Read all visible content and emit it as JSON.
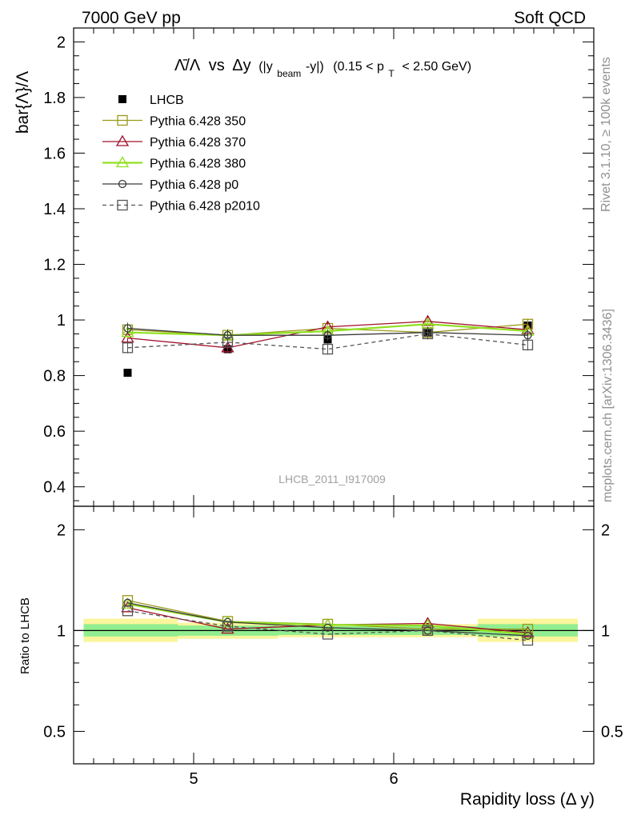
{
  "header": {
    "left": "7000 GeV pp",
    "right": "Soft QCD"
  },
  "side_text": {
    "rivet": "Rivet 3.1.10, ≥ 100k events",
    "source": "mcplots.cern.ch [arXiv:1306.3436]"
  },
  "watermark": "LHCB_2011_I917009",
  "chart_data": [
    {
      "type": "line",
      "title_parts": {
        "ratio": "Λ̄/Λ",
        "vs": "vs",
        "dy": "Δy",
        "paren": "(|y",
        "beam_sub": "beam",
        "minus_y": "-y|)",
        "range_open": "(0.15 < p",
        "T_sub": "T",
        "range_close": "< 2.50 GeV)"
      },
      "ylabel": "bar{Λ}/Λ",
      "xlim": [
        4.4,
        7.0
      ],
      "ylim": [
        0.33,
        2.05
      ],
      "yticks": [
        0.4,
        0.6,
        0.8,
        1,
        1.2,
        1.4,
        1.6,
        1.8,
        2
      ],
      "ytick_labels": [
        "0.4",
        "0.6",
        "0.8",
        "1",
        "1.2",
        "1.4",
        "1.6",
        "1.8",
        "2"
      ],
      "x": [
        4.67,
        5.17,
        5.67,
        6.17,
        6.67
      ],
      "series": [
        {
          "name": "LHCB",
          "color": "#000000",
          "marker": "filled-square",
          "dashed": false,
          "values": [
            0.81,
            0.895,
            0.93,
            0.955,
            0.98
          ],
          "errors": [
            0.008,
            0.008,
            0.008,
            0.008,
            0.008
          ]
        },
        {
          "name": "Pythia 6.428 350",
          "color": "#9a9a1a",
          "marker": "open-square",
          "dashed": false,
          "values": [
            0.965,
            0.945,
            0.97,
            0.955,
            0.985
          ],
          "errors": [
            0.02,
            0.02,
            0.02,
            0.02,
            0.02
          ]
        },
        {
          "name": "Pythia 6.428 370",
          "color": "#a0102a",
          "marker": "open-triangle",
          "dashed": false,
          "values": [
            0.935,
            0.9,
            0.975,
            0.995,
            0.965
          ],
          "errors": [
            0.02,
            0.02,
            0.02,
            0.02,
            0.02
          ]
        },
        {
          "name": "Pythia 6.428 380",
          "color": "#90e020",
          "marker": "open-triangle",
          "dashed": false,
          "values": [
            0.955,
            0.945,
            0.96,
            0.985,
            0.96
          ],
          "errors": [
            0.02,
            0.02,
            0.02,
            0.02,
            0.02
          ]
        },
        {
          "name": "Pythia 6.428 p0",
          "color": "#3a3a3a",
          "marker": "open-circle",
          "dashed": false,
          "values": [
            0.97,
            0.945,
            0.945,
            0.955,
            0.945
          ],
          "errors": [
            0.02,
            0.02,
            0.02,
            0.02,
            0.02
          ]
        },
        {
          "name": "Pythia 6.428 p2010",
          "color": "#555555",
          "marker": "open-square",
          "dashed": true,
          "values": [
            0.9,
            0.92,
            0.895,
            0.95,
            0.91
          ],
          "errors": [
            0.02,
            0.02,
            0.02,
            0.02,
            0.02
          ]
        }
      ]
    },
    {
      "type": "line",
      "ylabel": "Ratio to LHCB",
      "xlabel": "Rapidity loss (Δ y)",
      "xlim": [
        4.4,
        7.0
      ],
      "ylim": [
        0.4,
        2.35
      ],
      "log_y": true,
      "yticks": [
        0.5,
        1,
        2
      ],
      "ytick_labels": [
        "0.5",
        "1",
        "2"
      ],
      "xticks": [
        5,
        6
      ],
      "xtick_labels": [
        "5",
        "6"
      ],
      "x": [
        4.67,
        5.17,
        5.67,
        6.17,
        6.67
      ],
      "bands": {
        "edges": [
          4.45,
          4.92,
          5.42,
          5.92,
          6.42,
          6.92
        ],
        "yellow": [
          [
            0.925,
            1.085
          ],
          [
            0.945,
            1.055
          ],
          [
            0.955,
            1.045
          ],
          [
            0.955,
            1.045
          ],
          [
            0.925,
            1.085
          ]
        ],
        "green": [
          [
            0.96,
            1.045
          ],
          [
            0.965,
            1.035
          ],
          [
            0.97,
            1.03
          ],
          [
            0.97,
            1.03
          ],
          [
            0.96,
            1.045
          ]
        ]
      },
      "series": [
        {
          "name": "Pythia 6.428 350",
          "color": "#9a9a1a",
          "marker": "open-square",
          "dashed": false,
          "values": [
            1.23,
            1.065,
            1.045,
            1.01,
            1.01
          ]
        },
        {
          "name": "Pythia 6.428 370",
          "color": "#a0102a",
          "marker": "open-triangle",
          "dashed": false,
          "values": [
            1.17,
            1.01,
            1.04,
            1.05,
            0.985
          ]
        },
        {
          "name": "Pythia 6.428 380",
          "color": "#90e020",
          "marker": "open-triangle",
          "dashed": false,
          "values": [
            1.2,
            1.06,
            1.04,
            1.035,
            0.975
          ]
        },
        {
          "name": "Pythia 6.428 p0",
          "color": "#3a3a3a",
          "marker": "open-circle",
          "dashed": false,
          "values": [
            1.21,
            1.06,
            1.02,
            1.0,
            0.965
          ]
        },
        {
          "name": "Pythia 6.428 p2010",
          "color": "#555555",
          "marker": "open-square",
          "dashed": true,
          "values": [
            1.145,
            1.03,
            0.975,
            1.0,
            0.935
          ]
        }
      ]
    }
  ]
}
